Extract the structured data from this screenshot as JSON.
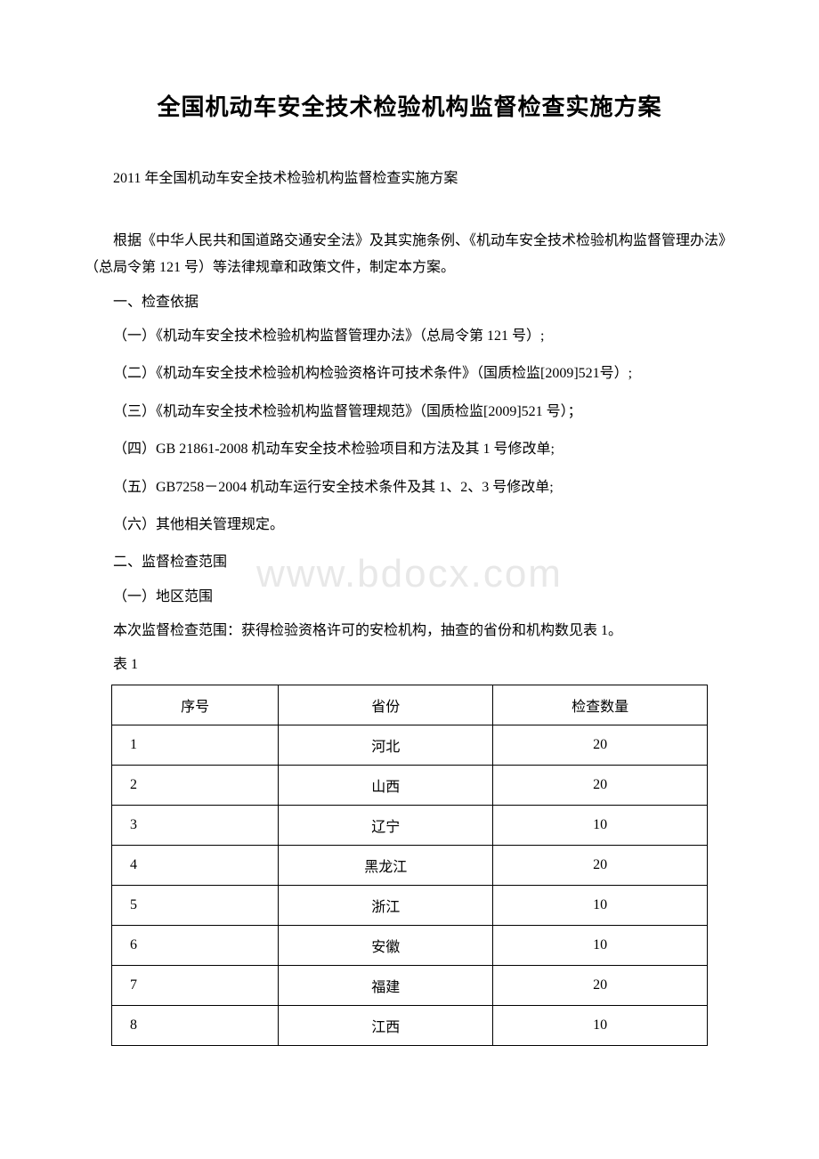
{
  "watermark": "www.bdocx.com",
  "title": "全国机动车安全技术检验机构监督检查实施方案",
  "subtitle": "2011 年全国机动车安全技术检验机构监督检查实施方案",
  "intro": "根据《中华人民共和国道路交通安全法》及其实施条例、《机动车安全技术检验机构监督管理办法》（总局令第 121 号）等法律规章和政策文件，制定本方案。",
  "section1_title": "一、检查依据",
  "basis": {
    "item1": "（一）《机动车安全技术检验机构监督管理办法》（总局令第 121 号）;",
    "item2": "（二）《机动车安全技术检验机构检验资格许可技术条件》（国质检监[2009]521号）;",
    "item3": "（三）《机动车安全技术检验机构监督管理规范》（国质检监[2009]521 号）；",
    "item4": "（四）GB 21861-2008 机动车安全技术检验项目和方法及其 1 号修改单;",
    "item5": "（五）GB7258－2004 机动车运行安全技术条件及其 1、2、3 号修改单;",
    "item6": "（六）其他相关管理规定。"
  },
  "section2_title": "二、监督检查范围",
  "section2_sub1": "（一）地区范围",
  "scope_text": "本次监督检查范围：获得检验资格许可的安检机构，抽查的省份和机构数见表 1。",
  "table_label": "表 1",
  "table": {
    "columns": [
      "序号",
      "省份",
      "检查数量"
    ],
    "rows": [
      [
        "1",
        "河北",
        "20"
      ],
      [
        "2",
        "山西",
        "20"
      ],
      [
        "3",
        "辽宁",
        "10"
      ],
      [
        "4",
        "黑龙江",
        "20"
      ],
      [
        "5",
        "浙江",
        "10"
      ],
      [
        "6",
        "安徽",
        "10"
      ],
      [
        "7",
        "福建",
        "20"
      ],
      [
        "8",
        "江西",
        "10"
      ]
    ],
    "col_widths": [
      "28%",
      "36%",
      "36%"
    ]
  },
  "colors": {
    "text": "#000000",
    "background": "#ffffff",
    "border": "#000000",
    "watermark": "#e8e8e8"
  },
  "fonts": {
    "title_size": 26,
    "body_size": 16,
    "watermark_size": 44
  }
}
